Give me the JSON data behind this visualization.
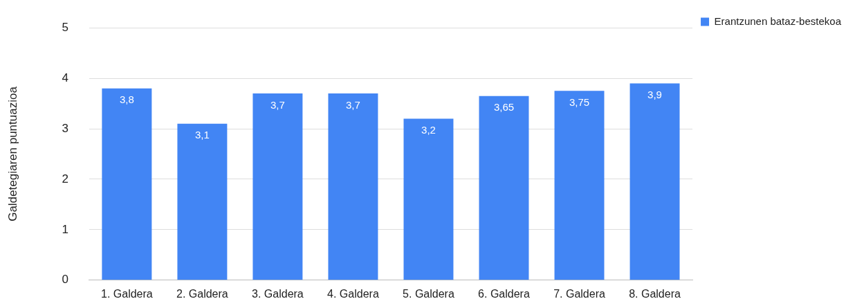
{
  "chart_data": {
    "type": "bar",
    "ylabel": "Galdetegiaren puntuazioa",
    "categories": [
      "1. Galdera",
      "2. Galdera",
      "3. Galdera",
      "4. Galdera",
      "5. Galdera",
      "6. Galdera",
      "7. Galdera",
      "8. Galdera"
    ],
    "series": [
      {
        "name": "Erantzunen bataz-bestekoa",
        "color": "#4285f4",
        "values": [
          3.8,
          3.1,
          3.7,
          3.7,
          3.2,
          3.65,
          3.75,
          3.9
        ],
        "value_labels": [
          "3,8",
          "3,1",
          "3,7",
          "3,7",
          "3,2",
          "3,65",
          "3,75",
          "3,9"
        ]
      }
    ],
    "ylim": [
      0,
      5
    ],
    "yticks": [
      0,
      1,
      2,
      3,
      4,
      5
    ],
    "grid": "y",
    "legend": "top right"
  }
}
